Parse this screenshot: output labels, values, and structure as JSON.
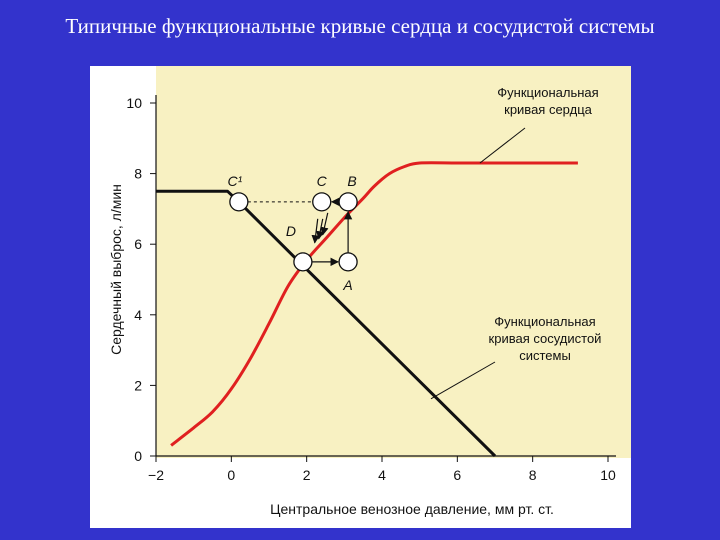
{
  "slide": {
    "title": "Типичные функциональные кривые сердца и сосудистой системы"
  },
  "chart_data": {
    "type": "line",
    "title": "",
    "xlabel": "Центральное венозное давление, мм рт. ст.",
    "ylabel": "Сердечный выброс, л/мин",
    "xlim": [
      -2,
      10
    ],
    "ylim": [
      0,
      10
    ],
    "x_ticks": [
      -2,
      0,
      2,
      4,
      6,
      8,
      10
    ],
    "x_tick_labels": [
      "−2",
      "0",
      "2",
      "4",
      "6",
      "8",
      "10"
    ],
    "y_ticks": [
      0,
      2,
      4,
      6,
      8,
      10
    ],
    "y_tick_labels": [
      "0",
      "2",
      "4",
      "6",
      "8",
      "10"
    ],
    "grid": false,
    "background": "#f8f1c2",
    "series": [
      {
        "name": "Функциональная кривая сердца",
        "color": "#e02020",
        "x": [
          -1.6,
          -1.0,
          -0.5,
          0.0,
          0.5,
          1.0,
          1.5,
          2.0,
          2.5,
          3.0,
          3.5,
          3.8,
          4.2,
          4.6,
          5.0,
          6.0,
          7.0,
          8.0,
          9.2
        ],
        "y": [
          0.3,
          0.8,
          1.25,
          1.9,
          2.75,
          3.75,
          4.8,
          5.55,
          6.15,
          6.75,
          7.3,
          7.65,
          8.0,
          8.2,
          8.3,
          8.3,
          8.3,
          8.3,
          8.3
        ]
      },
      {
        "name": "Функциональная кривая сосудистой системы",
        "color": "#111111",
        "x": [
          -2.0,
          -0.1,
          0.2,
          1.8,
          7.0
        ],
        "y": [
          7.5,
          7.5,
          7.2,
          5.5,
          0.0
        ]
      }
    ],
    "points": [
      {
        "label": "C¹",
        "x": 0.2,
        "y": 7.2
      },
      {
        "label": "C",
        "x": 2.4,
        "y": 7.2
      },
      {
        "label": "B",
        "x": 3.1,
        "y": 7.2
      },
      {
        "label": "D",
        "x": 1.9,
        "y": 5.5
      },
      {
        "label": "A",
        "x": 3.1,
        "y": 5.5
      }
    ],
    "annotations": [
      {
        "text": "Функциональная кривая сердца",
        "lines": [
          "Функциональная",
          "кривая сердца"
        ]
      },
      {
        "text": "Функциональная кривая сосудистой системы",
        "lines": [
          "Функциональная",
          "кривая сосудистой",
          "системы"
        ]
      }
    ]
  }
}
